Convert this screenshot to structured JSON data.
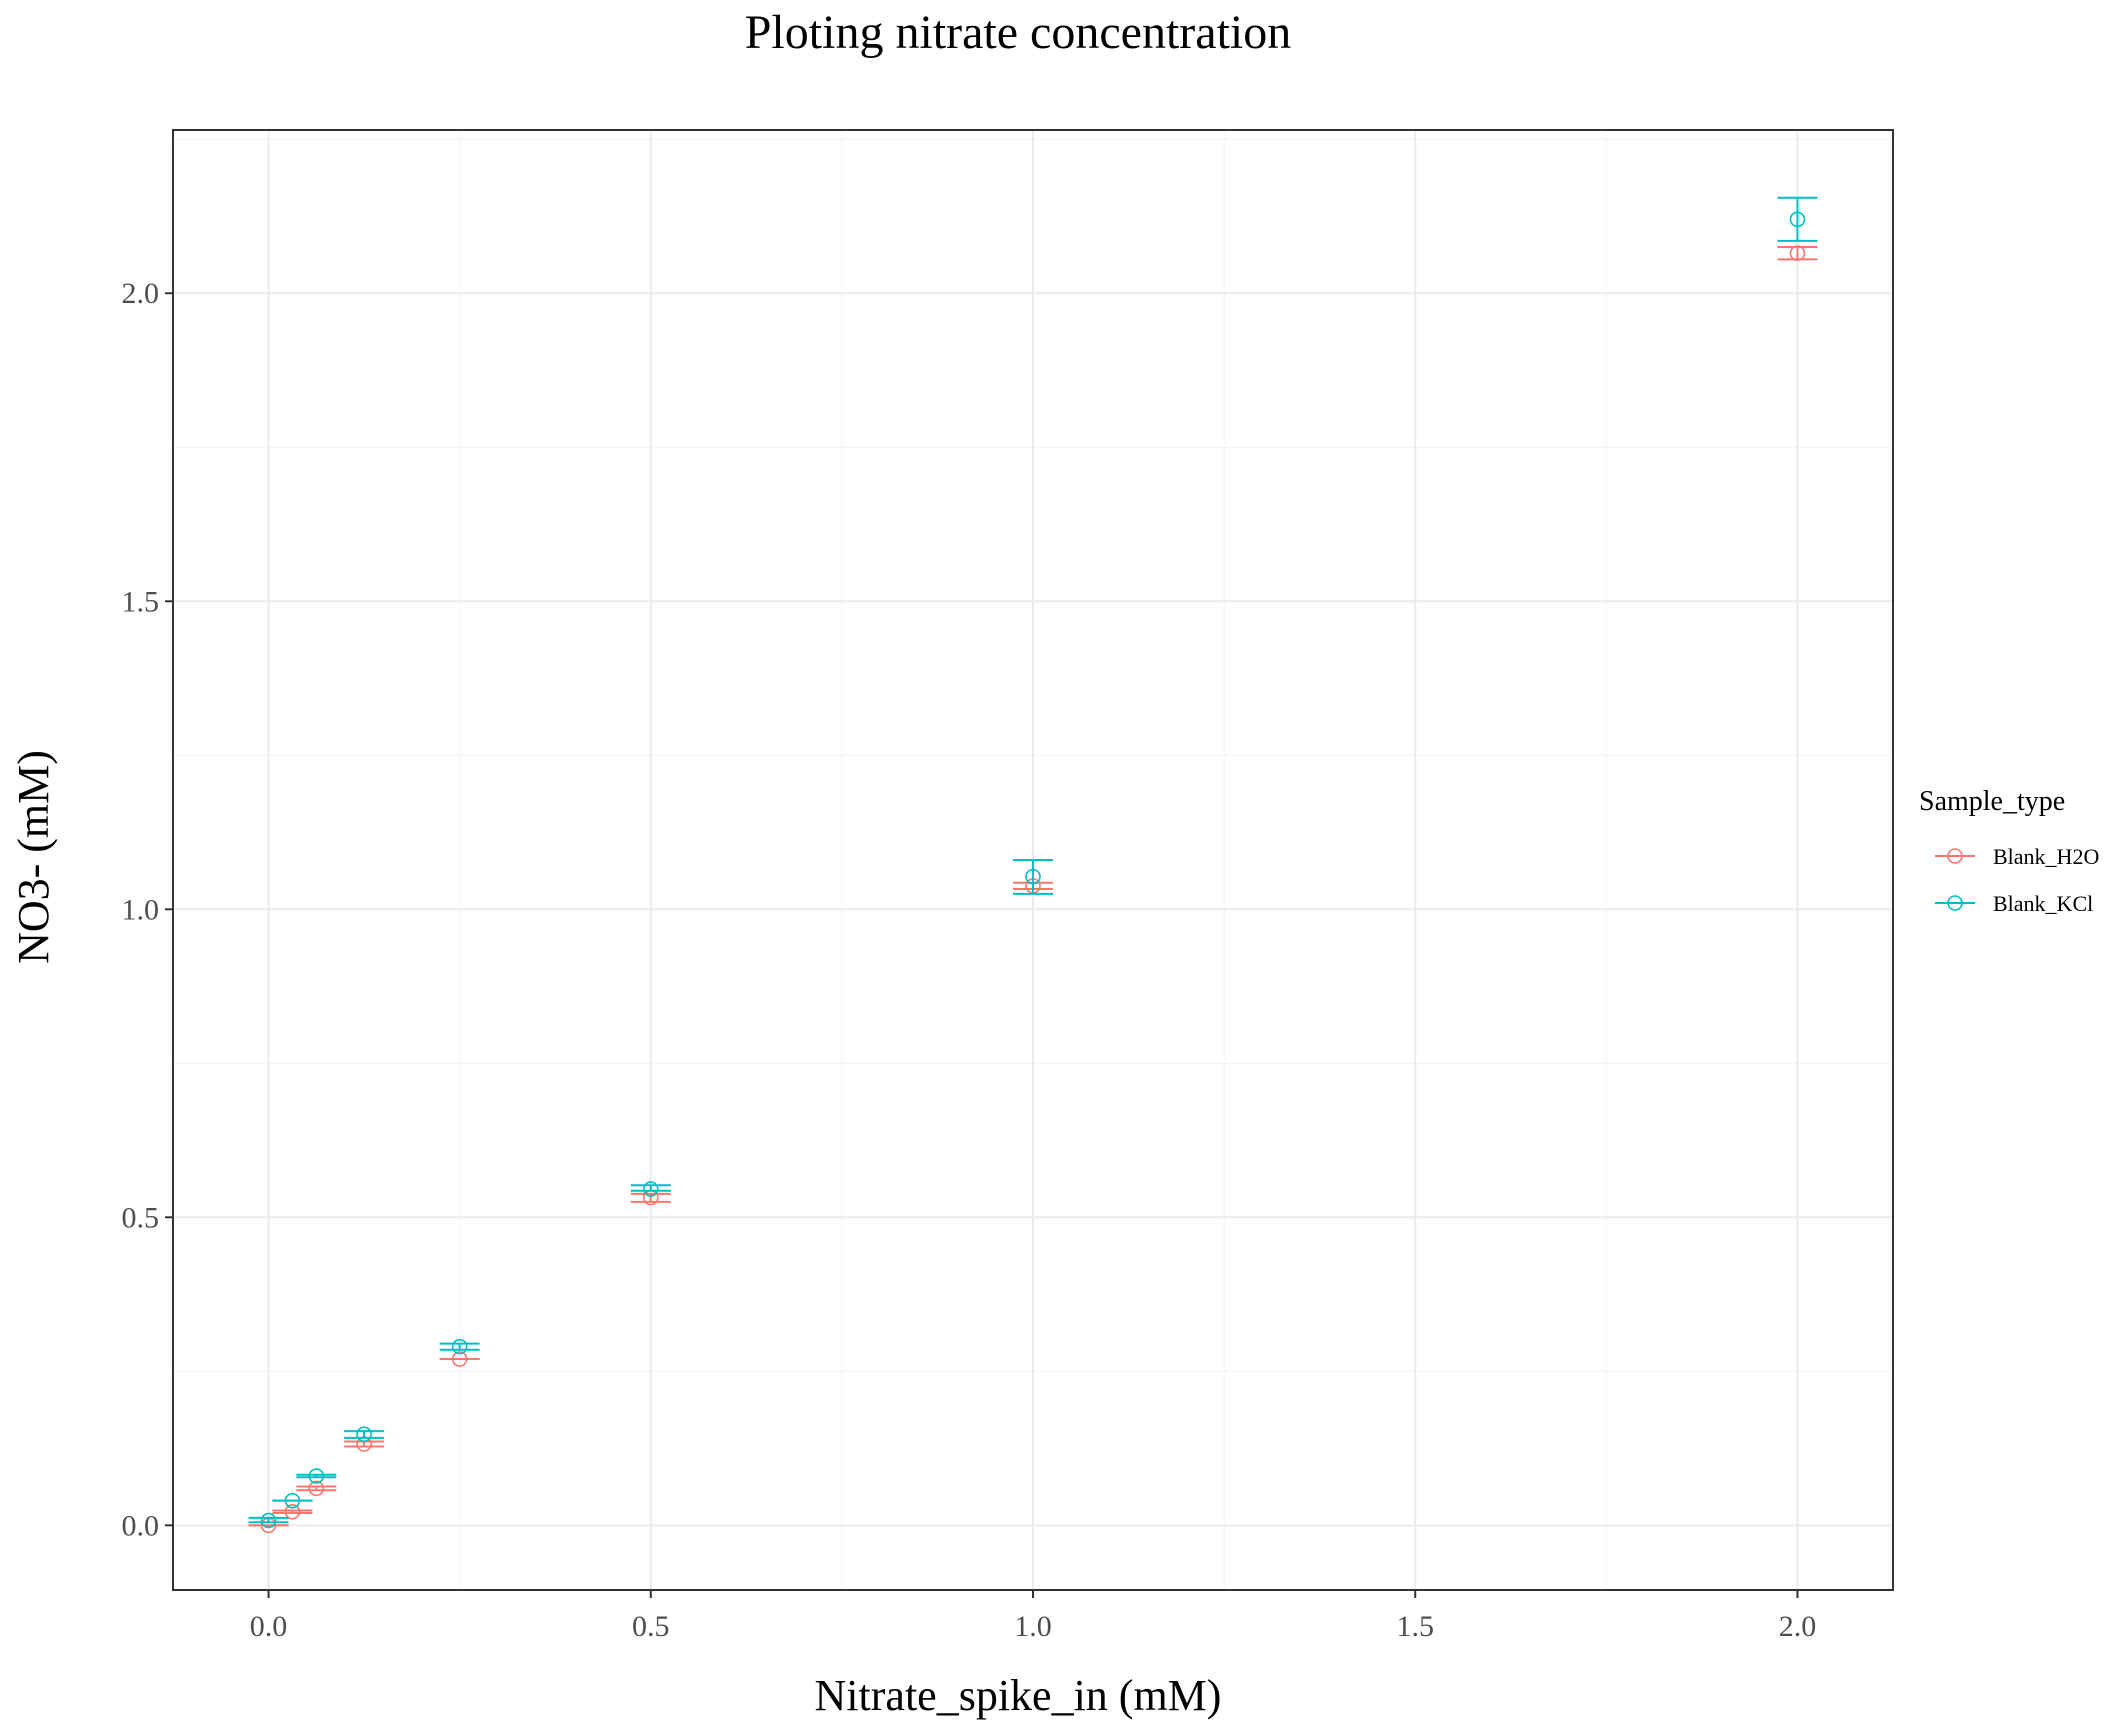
{
  "chart_data": {
    "type": "scatter",
    "title": "Ploting nitrate concentration",
    "xlabel": "Nitrate_spike_in (mM)",
    "ylabel": "NO3- (mM)",
    "xlim": [
      -0.125,
      2.125
    ],
    "ylim": [
      -0.105,
      2.265
    ],
    "x_ticks": [
      0.0,
      0.5,
      1.0,
      1.5,
      2.0
    ],
    "x_tick_labels": [
      "0.0",
      "0.5",
      "1.0",
      "1.5",
      "2.0"
    ],
    "y_ticks": [
      0.0,
      0.5,
      1.0,
      1.5,
      2.0
    ],
    "y_tick_labels": [
      "0.0",
      "0.5",
      "1.0",
      "1.5",
      "2.0"
    ],
    "grid": true,
    "legend": {
      "title": "Sample_type",
      "position": "right"
    },
    "series": [
      {
        "name": "Blank_H2O",
        "color": "#F8766D",
        "points": [
          {
            "x": 0.0,
            "y": 0.0,
            "ymin": 0.0,
            "ymax": 0.0
          },
          {
            "x": 0.03125,
            "y": 0.022,
            "ymin": 0.02,
            "ymax": 0.024
          },
          {
            "x": 0.0625,
            "y": 0.06,
            "ymin": 0.057,
            "ymax": 0.063
          },
          {
            "x": 0.125,
            "y": 0.132,
            "ymin": 0.128,
            "ymax": 0.136
          },
          {
            "x": 0.25,
            "y": 0.27,
            "ymin": 0.27,
            "ymax": 0.27
          },
          {
            "x": 0.5,
            "y": 0.532,
            "ymin": 0.525,
            "ymax": 0.538
          },
          {
            "x": 1.0,
            "y": 1.038,
            "ymin": 1.033,
            "ymax": 1.043
          },
          {
            "x": 2.0,
            "y": 2.065,
            "ymin": 2.055,
            "ymax": 2.075
          }
        ]
      },
      {
        "name": "Blank_KCl",
        "color": "#00BFC4",
        "points": [
          {
            "x": 0.0,
            "y": 0.008,
            "ymin": 0.005,
            "ymax": 0.012
          },
          {
            "x": 0.03125,
            "y": 0.04,
            "ymin": 0.04,
            "ymax": 0.04
          },
          {
            "x": 0.0625,
            "y": 0.08,
            "ymin": 0.078,
            "ymax": 0.082
          },
          {
            "x": 0.125,
            "y": 0.148,
            "ymin": 0.142,
            "ymax": 0.153
          },
          {
            "x": 0.25,
            "y": 0.29,
            "ymin": 0.285,
            "ymax": 0.295
          },
          {
            "x": 0.5,
            "y": 0.546,
            "ymin": 0.543,
            "ymax": 0.552
          },
          {
            "x": 1.0,
            "y": 1.053,
            "ymin": 1.025,
            "ymax": 1.08
          },
          {
            "x": 2.0,
            "y": 2.12,
            "ymin": 2.085,
            "ymax": 2.155
          }
        ]
      }
    ]
  }
}
